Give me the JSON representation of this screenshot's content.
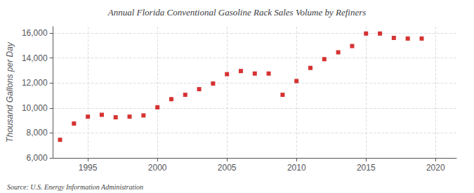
{
  "chart_data": {
    "type": "scatter",
    "title": "Annual Florida Conventional Gasoline Rack Sales Volume by Refiners",
    "ylabel": "Thousand Gallons per Day",
    "annotations": [
      "Source: U.S. Energy Information Administration"
    ],
    "x": [
      1993,
      1994,
      1995,
      1996,
      1997,
      1998,
      1999,
      2000,
      2001,
      2002,
      2003,
      2004,
      2005,
      2006,
      2007,
      2008,
      2009,
      2010,
      2011,
      2012,
      2013,
      2014,
      2015,
      2016,
      2017,
      2018,
      2019
    ],
    "values": [
      7450,
      8750,
      9300,
      9450,
      9250,
      9300,
      9400,
      10050,
      10700,
      11050,
      11500,
      11950,
      12700,
      12950,
      12750,
      12750,
      11050,
      12150,
      13200,
      13900,
      14450,
      14950,
      15950,
      15950,
      15600,
      15550,
      15550
    ],
    "color": "#cc0000",
    "marker": "square",
    "xlim": [
      1992.5,
      2021.5
    ],
    "xticks": [
      1995,
      2000,
      2005,
      2010,
      2015,
      2020
    ],
    "ylim": [
      6000,
      16500
    ],
    "yticks": [
      {
        "value": 6000,
        "label": "6,000"
      },
      {
        "value": 8000,
        "label": "8,000"
      },
      {
        "value": 10000,
        "label": "10,000"
      },
      {
        "value": 12000,
        "label": "12,000"
      },
      {
        "value": 14000,
        "label": "14,000"
      },
      {
        "value": 16000,
        "label": "16,000"
      }
    ],
    "grid": true
  }
}
